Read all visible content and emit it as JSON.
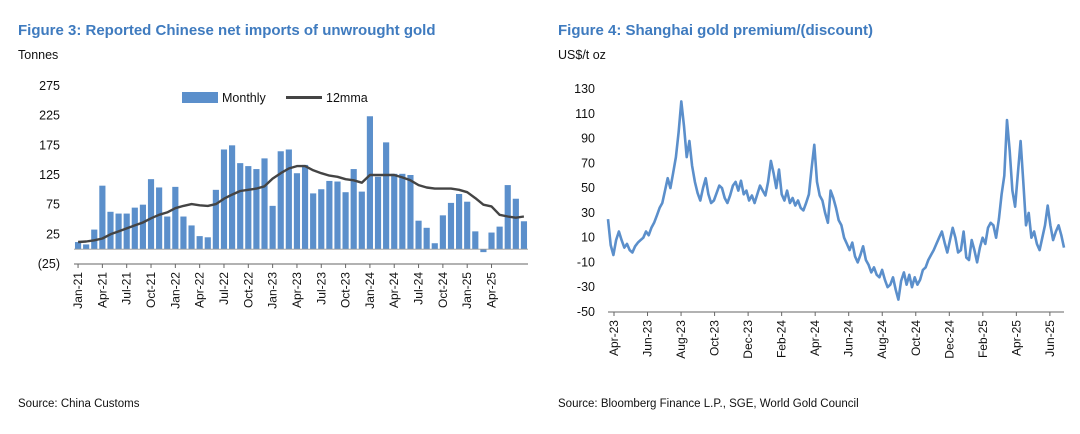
{
  "figures": [
    {
      "title": "Figure 3: Reported Chinese net imports of unwrought gold",
      "unit": "Tonnes",
      "source": "Source: China Customs"
    },
    {
      "title": "Figure 4: Shanghai gold premium/(discount)",
      "unit": "US$/t oz",
      "source": "Source: Bloomberg Finance L.P., SGE, World Gold Council"
    }
  ],
  "colors": {
    "bar": "#5b8fcb",
    "ma_line": "#444444",
    "premium_line": "#5b8fcb",
    "title": "#3f7bbf"
  },
  "chart_data": [
    {
      "type": "bar",
      "title": "Figure 3: Reported Chinese net imports of unwrought gold",
      "ylabel": "Tonnes",
      "ylim": [
        -25,
        275
      ],
      "yticks": [
        275,
        225,
        175,
        125,
        75,
        25,
        -25
      ],
      "ytick_labels": [
        "275",
        "225",
        "175",
        "125",
        "75",
        "25",
        "(25)"
      ],
      "x_labels": [
        "Jan-21",
        "Apr-21",
        "Jul-21",
        "Oct-21",
        "Jan-22",
        "Apr-22",
        "Jul-22",
        "Oct-22",
        "Jan-23",
        "Apr-23",
        "Jul-23",
        "Oct-23",
        "Jan-24",
        "Apr-24",
        "Jul-24",
        "Oct-24",
        "Jan-25",
        "Apr-25"
      ],
      "label_every": 3,
      "legend": [
        "Monthly",
        "12mma"
      ],
      "legend_position": "top-center",
      "series": [
        {
          "name": "Monthly",
          "kind": "bar",
          "values": [
            12,
            8,
            33,
            107,
            63,
            60,
            60,
            70,
            75,
            118,
            104,
            55,
            105,
            55,
            40,
            22,
            20,
            100,
            168,
            175,
            145,
            140,
            135,
            153,
            73,
            165,
            168,
            128,
            142,
            94,
            101,
            115,
            114,
            96,
            135,
            97,
            224,
            122,
            180,
            127,
            127,
            125,
            48,
            36,
            10,
            57,
            78,
            93,
            80,
            30,
            -5,
            28,
            38,
            108,
            85,
            47
          ]
        },
        {
          "name": "12mma",
          "kind": "line",
          "values": [
            12,
            13,
            15,
            18,
            25,
            30,
            35,
            40,
            45,
            52,
            58,
            62,
            69,
            73,
            76,
            74,
            73,
            76,
            85,
            92,
            98,
            100,
            102,
            106,
            119,
            128,
            136,
            140,
            140,
            133,
            128,
            124,
            122,
            118,
            116,
            112,
            125,
            125,
            125,
            125,
            121,
            116,
            108,
            104,
            102,
            102,
            102,
            100,
            96,
            86,
            75,
            72,
            58,
            55,
            53,
            55
          ]
        }
      ]
    },
    {
      "type": "line",
      "title": "Figure 4: Shanghai gold premium/(discount)",
      "ylabel": "US$/t oz",
      "ylim": [
        -50,
        130
      ],
      "yticks": [
        130,
        110,
        90,
        70,
        50,
        30,
        10,
        -10,
        -30,
        -50
      ],
      "ytick_labels": [
        "130",
        "110",
        "90",
        "70",
        "50",
        "30",
        "10",
        "-10",
        "-30",
        "-50"
      ],
      "x_labels": [
        "Apr-23",
        "Jun-23",
        "Aug-23",
        "Oct-23",
        "Dec-23",
        "Feb-24",
        "Apr-24",
        "Jun-24",
        "Aug-24",
        "Oct-24",
        "Dec-24",
        "Feb-25",
        "Apr-25",
        "Jun-25"
      ],
      "series": [
        {
          "name": "Premium",
          "values": [
            25,
            4,
            -4,
            8,
            15,
            8,
            2,
            5,
            0,
            -2,
            3,
            6,
            8,
            10,
            15,
            12,
            18,
            22,
            28,
            34,
            38,
            48,
            58,
            50,
            62,
            75,
            95,
            120,
            100,
            75,
            88,
            68,
            55,
            46,
            40,
            50,
            58,
            45,
            38,
            40,
            46,
            52,
            50,
            42,
            38,
            44,
            52,
            55,
            48,
            56,
            45,
            48,
            40,
            44,
            38,
            45,
            52,
            48,
            44,
            55,
            72,
            62,
            50,
            65,
            45,
            40,
            48,
            38,
            42,
            36,
            40,
            34,
            32,
            38,
            45,
            66,
            85,
            55,
            44,
            40,
            30,
            22,
            48,
            42,
            34,
            24,
            20,
            10,
            5,
            0,
            6,
            -5,
            -10,
            -4,
            3,
            -8,
            -12,
            -18,
            -14,
            -20,
            -22,
            -16,
            -24,
            -30,
            -28,
            -22,
            -32,
            -40,
            -25,
            -18,
            -28,
            -20,
            -30,
            -22,
            -28,
            -24,
            -16,
            -14,
            -8,
            -4,
            0,
            5,
            10,
            15,
            6,
            -2,
            8,
            18,
            10,
            -2,
            0,
            15,
            -6,
            -8,
            8,
            0,
            -10,
            2,
            10,
            5,
            18,
            22,
            20,
            10,
            25,
            45,
            60,
            105,
            80,
            48,
            35,
            62,
            88,
            55,
            20,
            30,
            10,
            15,
            5,
            0,
            10,
            20,
            36,
            20,
            8,
            15,
            20,
            12,
            2
          ]
        }
      ]
    }
  ]
}
